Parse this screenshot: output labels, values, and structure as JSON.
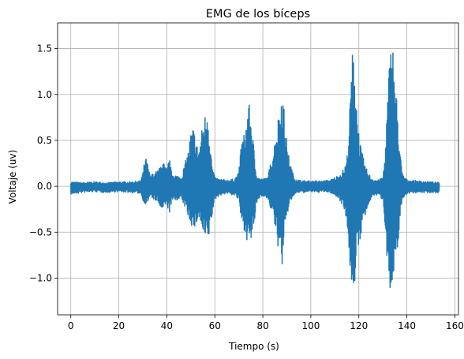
{
  "chart_data": {
    "type": "line",
    "title": "EMG de los bíceps",
    "xlabel": "Tiempo (s)",
    "ylabel": "Voltaje (uv)",
    "xlim": [
      -5.5,
      161.5
    ],
    "ylim": [
      -1.4,
      1.78
    ],
    "xticks": [
      0,
      20,
      40,
      60,
      80,
      100,
      120,
      140,
      160
    ],
    "yticks": [
      -1.0,
      -0.5,
      0.0,
      0.5,
      1.0,
      1.5
    ],
    "xtick_labels": [
      "0",
      "20",
      "40",
      "60",
      "80",
      "100",
      "120",
      "140",
      "160"
    ],
    "ytick_labels": [
      "−1.0",
      "−0.5",
      "0.0",
      "0.5",
      "1.0",
      "1.5"
    ],
    "grid": true,
    "color": "#1f77b4",
    "series": [
      {
        "x": [
          0,
          5,
          10,
          15,
          20,
          25,
          29,
          30,
          31,
          32,
          33,
          35,
          37,
          38,
          40,
          41,
          42,
          44,
          46,
          48,
          49,
          50,
          51,
          52,
          53,
          54,
          55,
          56,
          57,
          58,
          59,
          60,
          62,
          65,
          68,
          70,
          71,
          72,
          73,
          74,
          75,
          76,
          77,
          78,
          80,
          82,
          84,
          85,
          86,
          87,
          88,
          89,
          90,
          91,
          92,
          93,
          95,
          98,
          100,
          102,
          105,
          108,
          110,
          112,
          114,
          115,
          116,
          117,
          118,
          119,
          120,
          121,
          122,
          123,
          124,
          125,
          126,
          128,
          130,
          131,
          132,
          133,
          134,
          135,
          136,
          137,
          138,
          140,
          145,
          150,
          153.5
        ],
        "upper": [
          0.05,
          0.04,
          0.05,
          0.04,
          0.05,
          0.05,
          0.06,
          0.15,
          0.33,
          0.25,
          0.12,
          0.15,
          0.2,
          0.3,
          0.18,
          0.32,
          0.15,
          0.12,
          0.1,
          0.3,
          0.4,
          0.6,
          0.65,
          0.55,
          0.4,
          0.5,
          0.7,
          0.8,
          0.93,
          0.5,
          0.2,
          0.1,
          0.08,
          0.07,
          0.08,
          0.15,
          0.5,
          0.55,
          0.7,
          0.93,
          0.8,
          0.5,
          0.2,
          0.1,
          0.08,
          0.1,
          0.35,
          0.5,
          0.7,
          0.85,
          1.12,
          0.8,
          0.5,
          0.3,
          0.2,
          0.1,
          0.07,
          0.06,
          0.06,
          0.06,
          0.06,
          0.07,
          0.1,
          0.13,
          0.2,
          0.3,
          0.7,
          1.4,
          1.6,
          1.0,
          0.6,
          0.4,
          0.3,
          0.2,
          0.15,
          0.1,
          0.08,
          0.07,
          0.1,
          0.4,
          1.0,
          1.5,
          1.63,
          1.2,
          0.9,
          0.45,
          0.15,
          0.07,
          0.06,
          0.05,
          0.04
        ],
        "lower": [
          -0.09,
          -0.07,
          -0.06,
          -0.07,
          -0.06,
          -0.07,
          -0.08,
          -0.15,
          -0.2,
          -0.18,
          -0.12,
          -0.15,
          -0.22,
          -0.28,
          -0.2,
          -0.3,
          -0.18,
          -0.15,
          -0.15,
          -0.25,
          -0.35,
          -0.4,
          -0.5,
          -0.45,
          -0.35,
          -0.4,
          -0.55,
          -0.6,
          -0.63,
          -0.5,
          -0.3,
          -0.15,
          -0.1,
          -0.08,
          -0.1,
          -0.15,
          -0.4,
          -0.45,
          -0.55,
          -0.65,
          -0.62,
          -0.5,
          -0.3,
          -0.15,
          -0.1,
          -0.15,
          -0.3,
          -0.45,
          -0.6,
          -0.8,
          -0.88,
          -0.6,
          -0.35,
          -0.2,
          -0.15,
          -0.1,
          -0.07,
          -0.07,
          -0.06,
          -0.07,
          -0.06,
          -0.07,
          -0.1,
          -0.15,
          -0.25,
          -0.4,
          -0.8,
          -1.1,
          -1.12,
          -0.9,
          -0.7,
          -0.5,
          -0.4,
          -0.3,
          -0.25,
          -0.15,
          -0.1,
          -0.1,
          -0.15,
          -0.45,
          -0.9,
          -1.2,
          -1.25,
          -1.0,
          -0.7,
          -0.45,
          -0.15,
          -0.08,
          -0.07,
          -0.07,
          -0.07
        ]
      }
    ]
  }
}
